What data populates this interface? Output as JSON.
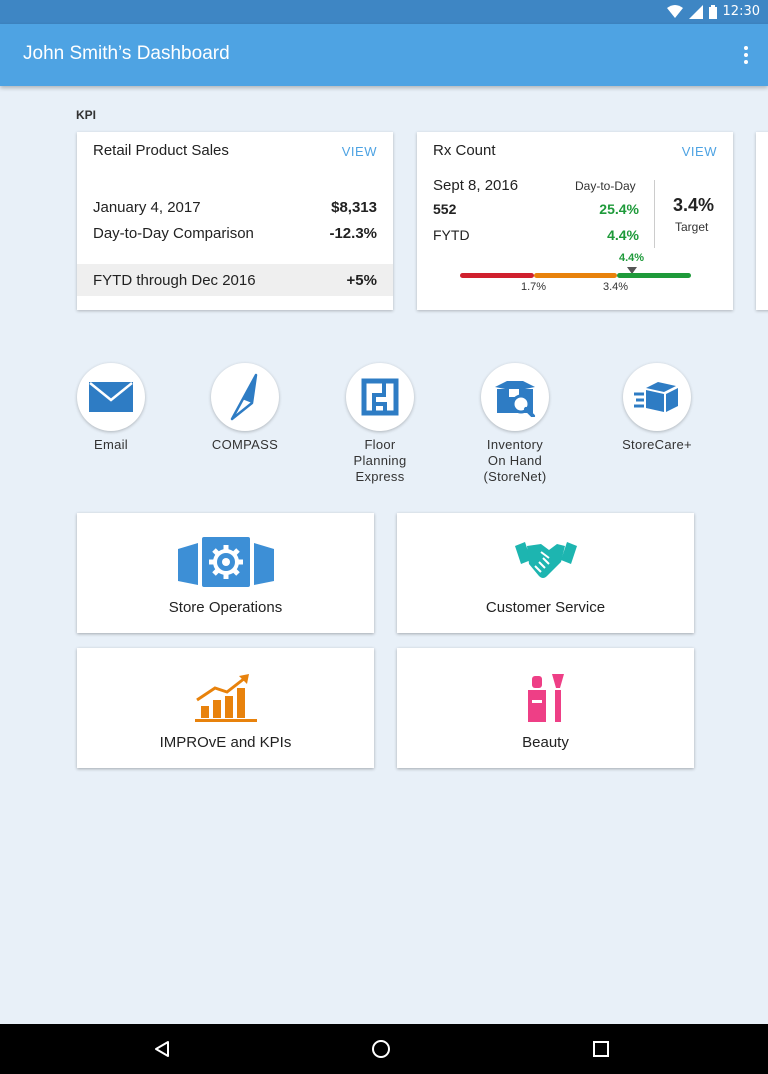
{
  "status_bar": {
    "time": "12:30",
    "icons": [
      "wifi-icon",
      "signal-icon",
      "battery-icon"
    ]
  },
  "app_bar": {
    "title": "John Smith’s Dashboard",
    "menu_icon": "more-vert-icon"
  },
  "kpi_section": {
    "label": "KPI",
    "retail_card": {
      "title": "Retail Product Sales",
      "view_label": "VIEW",
      "date": "January 4, 2017",
      "sales": "$8,313",
      "comparison_label": "Day-to-Day Comparison",
      "comparison_value": "-12.3%",
      "fytd_label": "FYTD through Dec 2016",
      "fytd_value": "+5%"
    },
    "rx_card": {
      "title": "Rx Count",
      "view_label": "VIEW",
      "date": "Sept 8, 2016",
      "day_to_day_label": "Day-to-Day",
      "count": "552",
      "day_value": "25.4%",
      "fytd_label": "FYTD",
      "fytd_value": "4.4%",
      "target_value": "3.4%",
      "target_label": "Target",
      "progress": {
        "marker_label": "4.4%",
        "marker_value": 4.4,
        "tick_1": "1.7%",
        "tick_2": "3.4%",
        "colors": {
          "low": "#d0202e",
          "mid": "#e8820c",
          "high": "#1e9a3a"
        }
      }
    }
  },
  "apps": [
    {
      "label": "Email",
      "icon": "envelope-icon"
    },
    {
      "label": "COMPASS",
      "icon": "compass-icon"
    },
    {
      "label": "Floor\nPlanning\nExpress",
      "icon": "floor-plan-icon"
    },
    {
      "label": "Inventory\nOn Hand\n(StoreNet)",
      "icon": "inventory-search-icon"
    },
    {
      "label": "StoreCare+",
      "icon": "delivery-box-icon"
    }
  ],
  "tiles": [
    {
      "label": "Store Operations",
      "icon": "store-gear-icon",
      "color": "#3d8fd6"
    },
    {
      "label": "Customer Service",
      "icon": "handshake-icon",
      "color": "#1db5b0"
    },
    {
      "label": "IMPROvE and KPIs",
      "icon": "growth-chart-icon",
      "color": "#e8820c"
    },
    {
      "label": "Beauty",
      "icon": "lipstick-icon",
      "color": "#ee3f86"
    }
  ],
  "colors": {
    "accent": "#4ea3e3",
    "positive": "#1e9a3a",
    "app_icon_blue": "#2e7cc4"
  },
  "nav_bar": {
    "back_icon": "back-triangle-icon",
    "home_icon": "home-circle-icon",
    "recents_icon": "recents-square-icon"
  }
}
